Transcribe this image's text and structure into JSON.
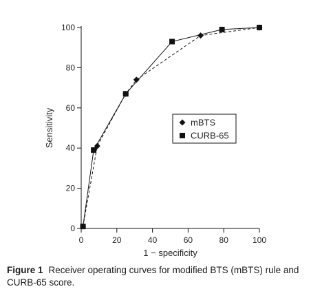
{
  "chart_data": {
    "type": "line",
    "xlabel": "1 − specificity",
    "ylabel": "Sensitivity",
    "xlim": [
      0,
      100
    ],
    "ylim": [
      0,
      100
    ],
    "x_ticks": [
      0,
      20,
      40,
      60,
      80,
      100
    ],
    "y_ticks": [
      0,
      20,
      40,
      60,
      80,
      100
    ],
    "grid": false,
    "legend_position": "center-right",
    "series": [
      {
        "name": "mBTS",
        "marker": "diamond",
        "line_style": "dashed",
        "points": [
          [
            1,
            1
          ],
          [
            9,
            41
          ],
          [
            25,
            67
          ],
          [
            31,
            74
          ],
          [
            67,
            96
          ],
          [
            100,
            100
          ]
        ]
      },
      {
        "name": "CURB-65",
        "marker": "square",
        "line_style": "solid",
        "points": [
          [
            1,
            1
          ],
          [
            7,
            39
          ],
          [
            25,
            67
          ],
          [
            51,
            93
          ],
          [
            79,
            99
          ],
          [
            100,
            100
          ]
        ]
      }
    ]
  },
  "caption": {
    "label": "Figure 1",
    "text": "Receiver operating curves for modified BTS (mBTS) rule and CURB-65 score."
  },
  "colors": {
    "ink": "#111111",
    "caption": "#1a1a1a"
  }
}
